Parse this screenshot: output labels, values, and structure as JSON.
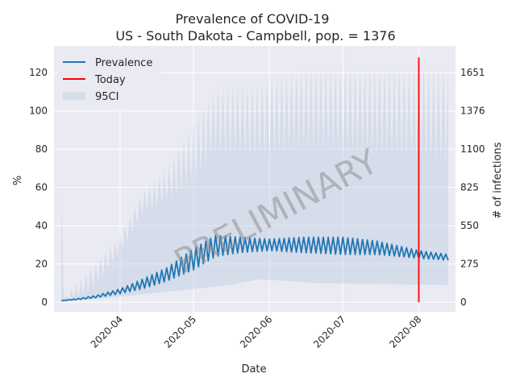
{
  "chart_data": {
    "type": "line",
    "title": "Prevalence of COVID-19",
    "subtitle": "US - South Dakota - Campbell, pop. = 1376",
    "xlabel": "Date",
    "ylabel": "%",
    "y2label": "# of infections",
    "watermark": "PRELIMINARY",
    "x_start": "2020-03-08",
    "x_end": "2020-08-13",
    "xlim": [
      "2020-03-05",
      "2020-08-16"
    ],
    "ylim": [
      -5,
      134
    ],
    "x_ticks": [
      "2020-04",
      "2020-05",
      "2020-06",
      "2020-07",
      "2020-08"
    ],
    "x_tick_dates": [
      "2020-04-01",
      "2020-05-01",
      "2020-06-01",
      "2020-07-01",
      "2020-08-01"
    ],
    "y_ticks": [
      0,
      20,
      40,
      60,
      80,
      100,
      120
    ],
    "y2_ticks": [
      0,
      275,
      550,
      825,
      1100,
      1376,
      1651
    ],
    "today": "2020-08-01",
    "today_range": [
      0,
      128
    ],
    "legend": {
      "position": "upper-left",
      "entries": [
        "Prevalence",
        "Today",
        "95CI"
      ]
    },
    "grid": true,
    "series": [
      {
        "name": "Prevalence",
        "color": "#1f77b4",
        "knots": [
          {
            "date": "2020-03-08",
            "lo": 0.8,
            "hi": 0.9
          },
          {
            "date": "2020-03-15",
            "lo": 1.4,
            "hi": 2.0
          },
          {
            "date": "2020-03-22",
            "lo": 2.3,
            "hi": 3.5
          },
          {
            "date": "2020-04-01",
            "lo": 4.5,
            "hi": 7.0
          },
          {
            "date": "2020-04-10",
            "lo": 7.0,
            "hi": 12.0
          },
          {
            "date": "2020-04-20",
            "lo": 11.0,
            "hi": 18.0
          },
          {
            "date": "2020-05-01",
            "lo": 17.0,
            "hi": 28.0
          },
          {
            "date": "2020-05-10",
            "lo": 24.0,
            "hi": 35.0
          },
          {
            "date": "2020-05-20",
            "lo": 26.0,
            "hi": 34.0
          },
          {
            "date": "2020-06-01",
            "lo": 27.0,
            "hi": 33.0
          },
          {
            "date": "2020-06-15",
            "lo": 26.0,
            "hi": 34.0
          },
          {
            "date": "2020-07-01",
            "lo": 25.0,
            "hi": 34.0
          },
          {
            "date": "2020-07-15",
            "lo": 25.0,
            "hi": 32.0
          },
          {
            "date": "2020-08-01",
            "lo": 23.0,
            "hi": 27.0
          },
          {
            "date": "2020-08-13",
            "lo": 22.0,
            "hi": 25.0
          }
        ]
      },
      {
        "name": "95CI",
        "color": "#b0c4de",
        "lower_knots": [
          {
            "date": "2020-03-08",
            "v": 0.5
          },
          {
            "date": "2020-04-01",
            "v": 3.0
          },
          {
            "date": "2020-05-01",
            "v": 7.0
          },
          {
            "date": "2020-05-15",
            "v": 9.0
          },
          {
            "date": "2020-05-28",
            "v": 12.0
          },
          {
            "date": "2020-06-10",
            "v": 11.0
          },
          {
            "date": "2020-06-20",
            "v": 10.0
          },
          {
            "date": "2020-08-13",
            "v": 9.0
          }
        ],
        "upper_knots": [
          {
            "date": "2020-03-08",
            "lo": 1.0,
            "hi": 55.0
          },
          {
            "date": "2020-03-10",
            "lo": 1.0,
            "hi": 4.0
          },
          {
            "date": "2020-03-20",
            "lo": 5.0,
            "hi": 18.0
          },
          {
            "date": "2020-04-01",
            "lo": 25.0,
            "hi": 35.0
          },
          {
            "date": "2020-04-10",
            "lo": 45.0,
            "hi": 58.0
          },
          {
            "date": "2020-04-20",
            "lo": 52.0,
            "hi": 70.0
          },
          {
            "date": "2020-05-01",
            "lo": 62.0,
            "hi": 95.0
          },
          {
            "date": "2020-05-10",
            "lo": 78.0,
            "hi": 113.0
          },
          {
            "date": "2020-05-25",
            "lo": 75.0,
            "hi": 115.0
          },
          {
            "date": "2020-06-15",
            "lo": 80.0,
            "hi": 123.0
          },
          {
            "date": "2020-07-01",
            "lo": 78.0,
            "hi": 124.0
          },
          {
            "date": "2020-07-20",
            "lo": 76.0,
            "hi": 124.0
          },
          {
            "date": "2020-08-13",
            "lo": 72.0,
            "hi": 125.0
          }
        ]
      }
    ]
  }
}
